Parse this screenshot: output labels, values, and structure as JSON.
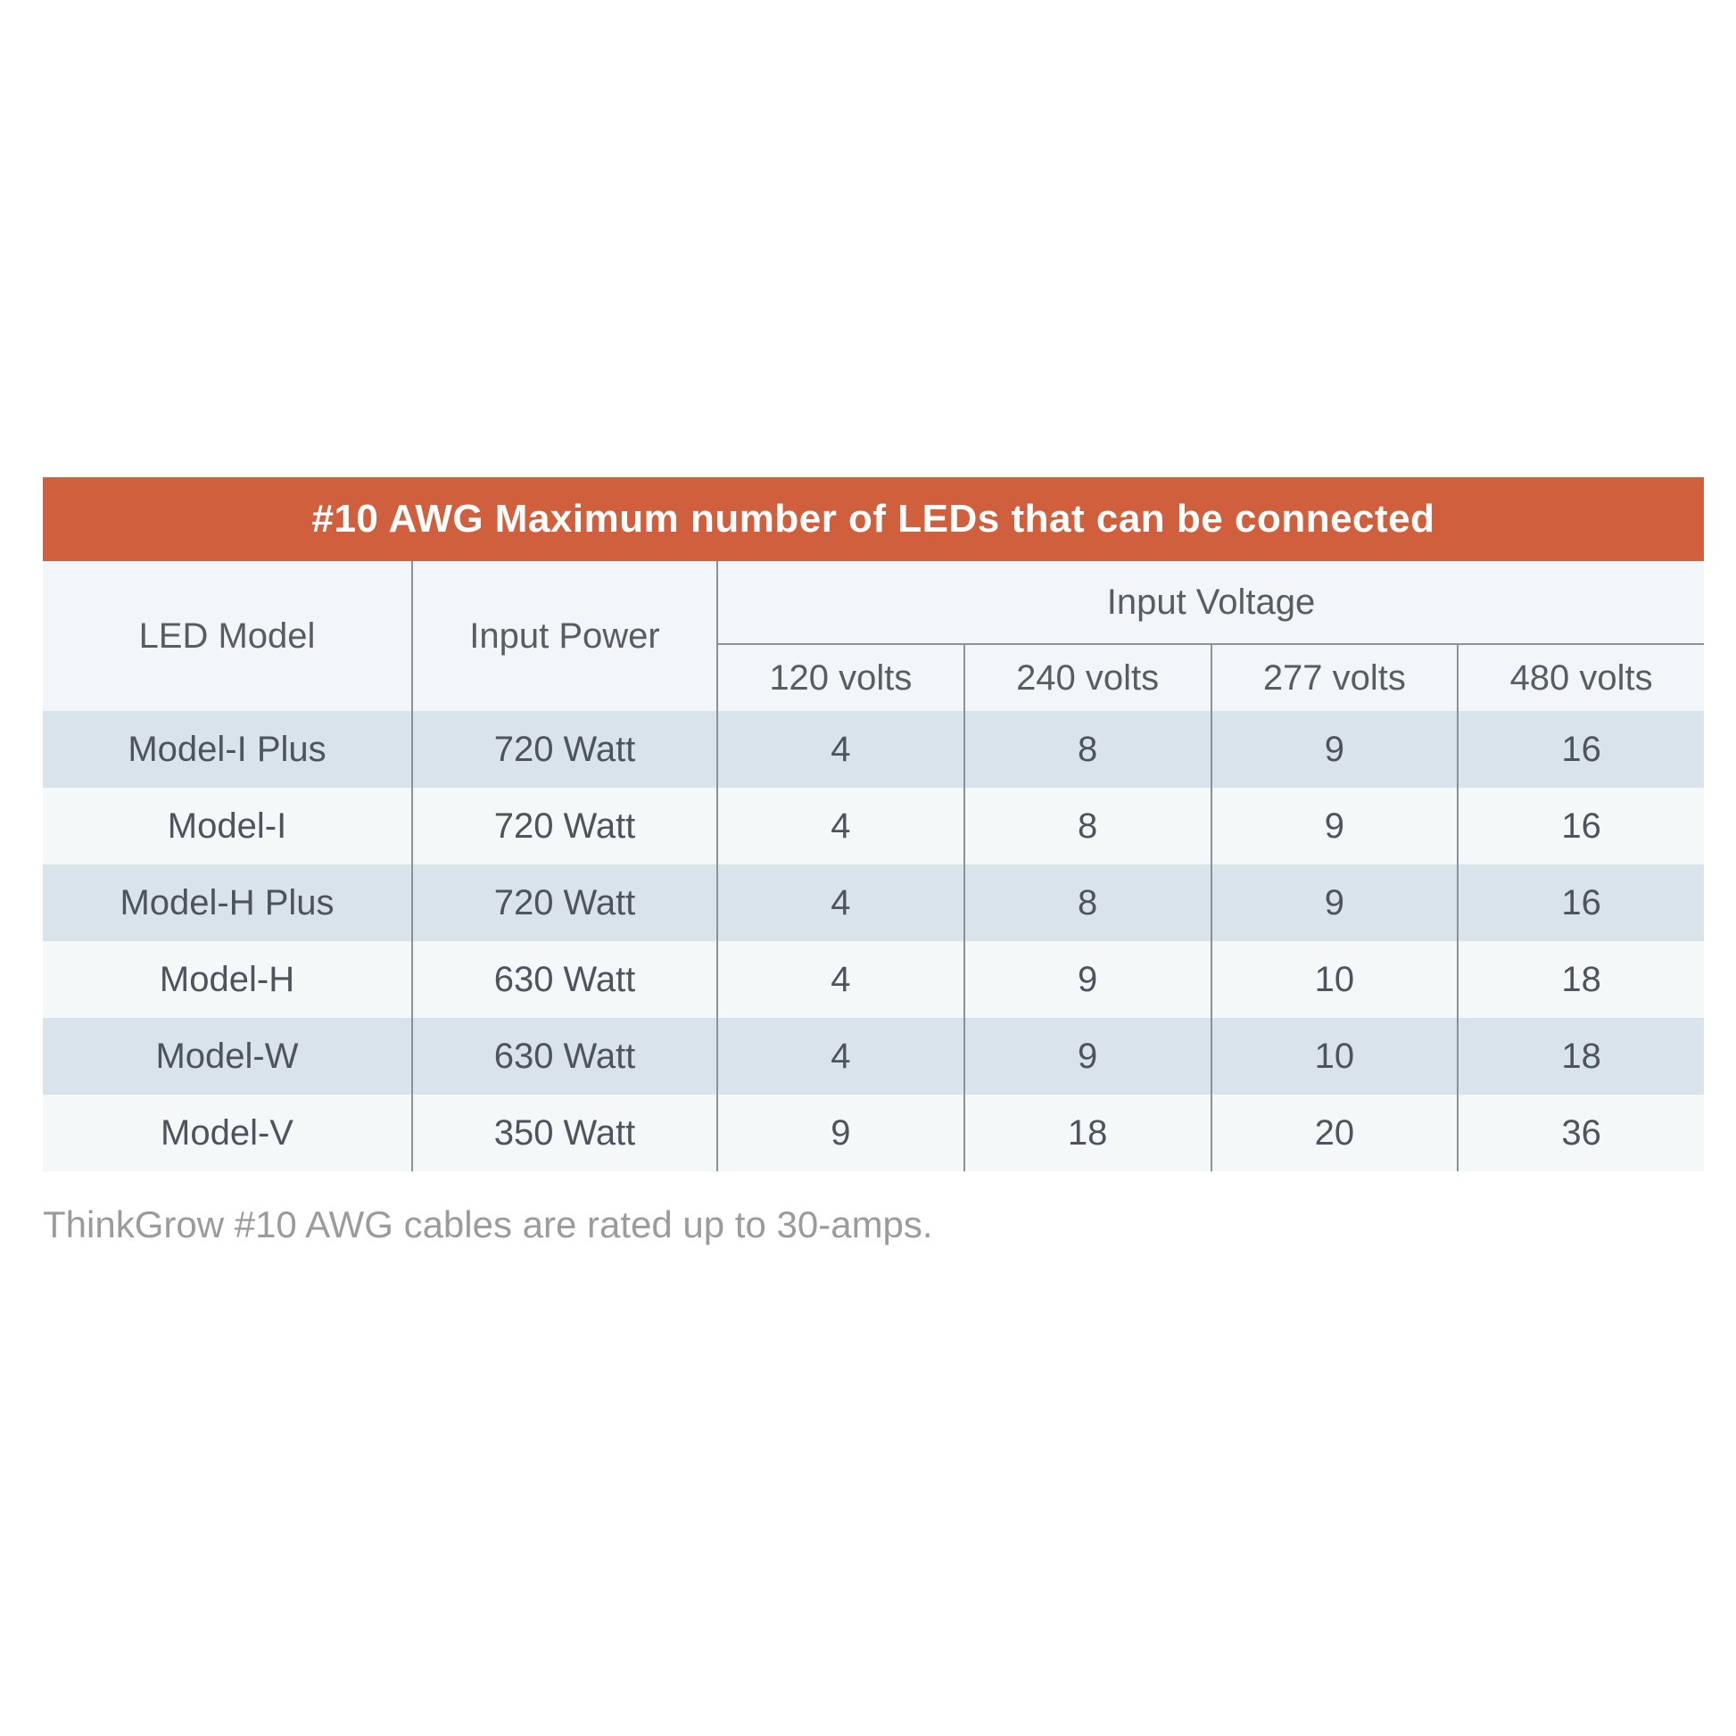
{
  "table": {
    "title": "#10 AWG Maximum number of LEDs that can be connected",
    "header": {
      "led_model": "LED Model",
      "input_power": "Input Power",
      "input_voltage": "Input Voltage",
      "voltages": [
        "120 volts",
        "240 volts",
        "277 volts",
        "480 volts"
      ]
    },
    "rows": [
      {
        "model": "Model-I Plus",
        "power": "720 Watt",
        "values": [
          "4",
          "8",
          "9",
          "16"
        ]
      },
      {
        "model": "Model-I",
        "power": "720 Watt",
        "values": [
          "4",
          "8",
          "9",
          "16"
        ]
      },
      {
        "model": "Model-H Plus",
        "power": "720 Watt",
        "values": [
          "4",
          "8",
          "9",
          "16"
        ]
      },
      {
        "model": "Model-H",
        "power": "630 Watt",
        "values": [
          "4",
          "9",
          "10",
          "18"
        ]
      },
      {
        "model": "Model-W",
        "power": "630 Watt",
        "values": [
          "4",
          "9",
          "10",
          "18"
        ]
      },
      {
        "model": "Model-V",
        "power": "350 Watt",
        "values": [
          "9",
          "18",
          "20",
          "36"
        ]
      }
    ],
    "footnote": "ThinkGrow #10 AWG cables are rated up to 30-amps."
  },
  "colors": {
    "title_bar_bg": "#d0603d",
    "title_text": "#ffffff",
    "header_bg": "#f3f6f8",
    "row_alt_blue": "#d8e3ec",
    "row_alt_light": "#f5f8f9",
    "divider": "#8a9298",
    "body_text": "#4d545b",
    "footnote_text": "#9b9b9b"
  },
  "chart_data": {
    "type": "table",
    "title": "#10 AWG Maximum number of LEDs that can be connected",
    "columns": [
      "LED Model",
      "Input Power",
      "120 volts",
      "240 volts",
      "277 volts",
      "480 volts"
    ],
    "column_groups": [
      {
        "label": "Input Voltage",
        "columns": [
          "120 volts",
          "240 volts",
          "277 volts",
          "480 volts"
        ]
      }
    ],
    "rows": [
      [
        "Model-I Plus",
        "720 Watt",
        4,
        8,
        9,
        16
      ],
      [
        "Model-I",
        "720 Watt",
        4,
        8,
        9,
        16
      ],
      [
        "Model-H Plus",
        "720 Watt",
        4,
        8,
        9,
        16
      ],
      [
        "Model-H",
        "630 Watt",
        4,
        9,
        10,
        18
      ],
      [
        "Model-W",
        "630 Watt",
        4,
        9,
        10,
        18
      ],
      [
        "Model-V",
        "350 Watt",
        9,
        18,
        20,
        36
      ]
    ],
    "footnote": "ThinkGrow #10 AWG cables are rated up to 30-amps."
  }
}
